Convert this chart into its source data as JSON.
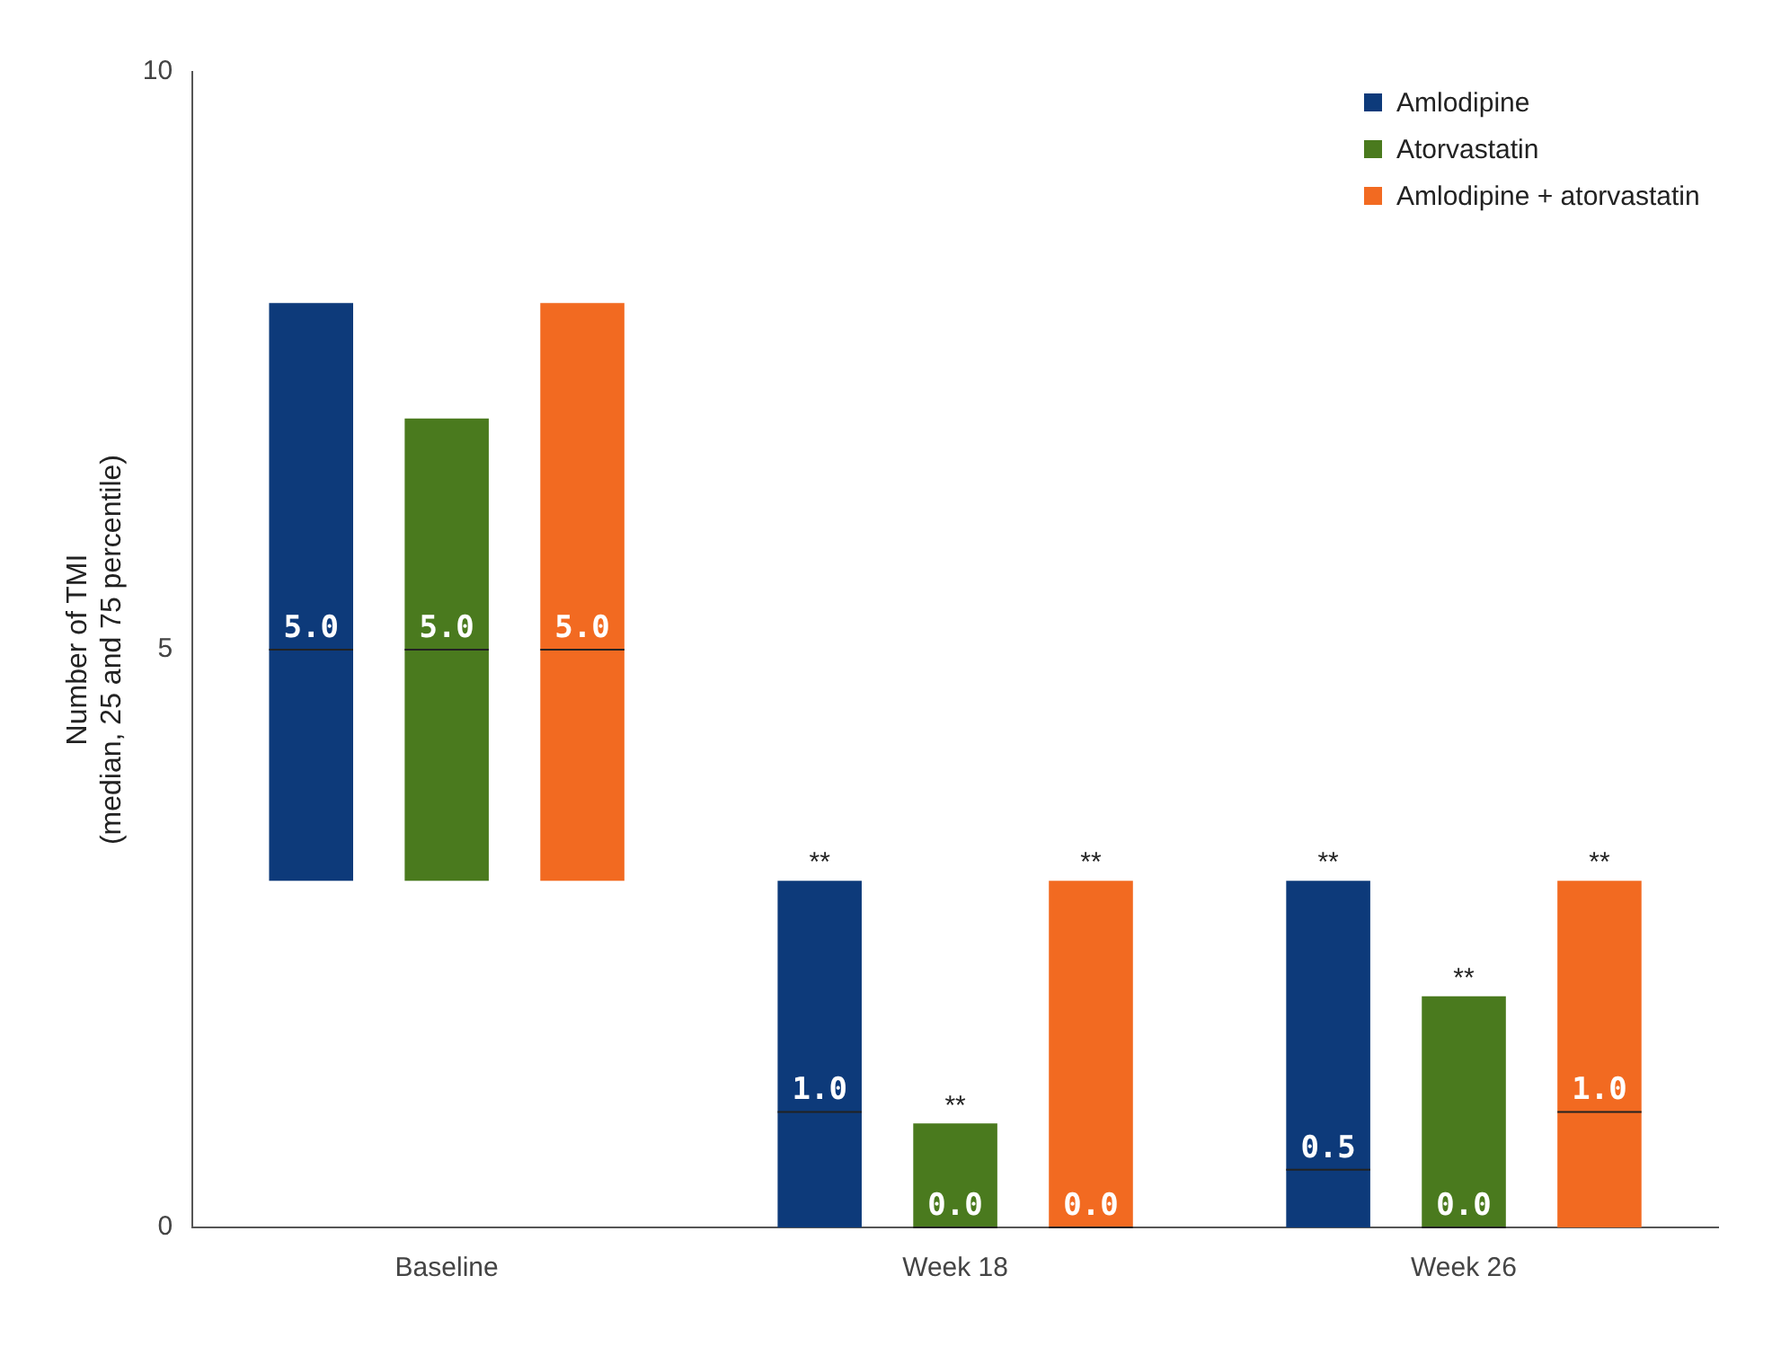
{
  "chart_data": {
    "type": "box",
    "ylabel": "Number of TMI\n(median, 25 and 75 percentile)",
    "categories": [
      "Baseline",
      "Week 18",
      "Week 26"
    ],
    "series": [
      {
        "name": "Amlodipine",
        "color": "#0d3a7a",
        "boxes": [
          {
            "low": 3,
            "q1": 3,
            "median": 5,
            "q3": 8,
            "high": 8
          },
          {
            "low": 0,
            "q1": 0,
            "median": 1,
            "q3": 3,
            "high": 3
          },
          {
            "low": 0,
            "q1": 0,
            "median": 0.5,
            "q3": 3,
            "high": 3
          }
        ],
        "value_labels": [
          "5.0",
          "1.0",
          "0.5"
        ]
      },
      {
        "name": "Atorvastatin",
        "color": "#4a7a1e",
        "boxes": [
          {
            "low": 3,
            "q1": 3,
            "median": 5,
            "q3": 7,
            "high": 7
          },
          {
            "low": 0,
            "q1": 0,
            "median": 0,
            "q3": 0.9,
            "high": 0.9
          },
          {
            "low": 0,
            "q1": 0,
            "median": 0,
            "q3": 2,
            "high": 2
          }
        ],
        "value_labels": [
          "5.0",
          "0.0",
          "0.0"
        ]
      },
      {
        "name": "Amlodipine + atorvastatin",
        "color": "#f26a21",
        "boxes": [
          {
            "low": 3,
            "q1": 3,
            "median": 5,
            "q3": 8,
            "high": 8
          },
          {
            "low": 0,
            "q1": 0,
            "median": 0,
            "q3": 3,
            "high": 3
          },
          {
            "low": 0,
            "q1": 0,
            "median": 1,
            "q3": 3,
            "high": 3
          }
        ],
        "value_labels": [
          "5.0",
          "0.0",
          "1.0"
        ]
      }
    ],
    "ylim": [
      0,
      10
    ],
    "yticks": [
      0,
      5,
      10
    ],
    "grid": false,
    "legend": "top right",
    "annotations": [
      "**",
      "**",
      "**",
      "**",
      "**",
      "**"
    ]
  }
}
